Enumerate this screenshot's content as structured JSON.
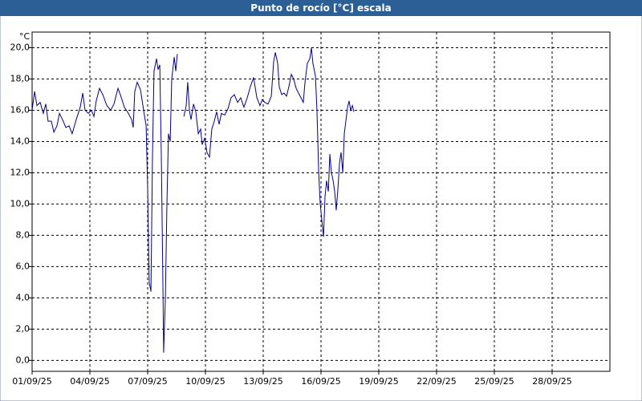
{
  "chart_data": {
    "type": "line",
    "title": "Punto de rocío [°C] escala",
    "y_unit": "°C",
    "x": [
      0,
      0.13,
      0.25,
      0.42,
      0.58,
      0.71,
      0.83,
      1.0,
      1.13,
      1.29,
      1.42,
      1.58,
      1.75,
      1.92,
      2.08,
      2.29,
      2.5,
      2.63,
      2.75,
      2.92,
      3.08,
      3.21,
      3.33,
      3.5,
      3.67,
      3.88,
      4.08,
      4.25,
      4.46,
      4.58,
      4.79,
      5.0,
      5.17,
      5.25,
      5.33,
      5.46,
      5.63,
      5.79,
      5.92,
      6.0,
      6.08,
      6.17,
      6.25,
      6.33,
      6.46,
      6.54,
      6.63,
      6.71,
      6.79,
      6.83,
      6.92,
      7.0,
      7.08,
      7.17,
      7.25,
      7.38,
      7.46,
      7.54,
      7.7,
      7.88,
      8.0,
      8.08,
      8.17,
      8.25,
      8.38,
      8.5,
      8.63,
      8.75,
      8.83,
      8.96,
      9.08,
      9.21,
      9.33,
      9.46,
      9.58,
      9.71,
      9.83,
      10.0,
      10.17,
      10.33,
      10.5,
      10.67,
      10.83,
      11.0,
      11.17,
      11.33,
      11.5,
      11.67,
      11.83,
      11.96,
      12.08,
      12.25,
      12.42,
      12.54,
      12.63,
      12.75,
      12.83,
      12.96,
      13.08,
      13.21,
      13.33,
      13.46,
      13.58,
      13.71,
      13.83,
      13.96,
      14.08,
      14.17,
      14.29,
      14.42,
      14.5,
      14.58,
      14.71,
      14.79,
      14.88,
      14.96,
      15.04,
      15.13,
      15.21,
      15.29,
      15.38,
      15.46,
      15.54,
      15.63,
      15.71,
      15.79,
      15.88,
      15.96,
      16.04,
      16.13,
      16.21,
      16.29,
      16.38,
      16.46,
      16.54,
      16.63,
      16.71
    ],
    "series": [
      {
        "color": "#00008b",
        "values": [
          16.0,
          17.2,
          16.3,
          16.5,
          15.8,
          16.4,
          15.3,
          15.3,
          14.6,
          15.0,
          15.8,
          15.4,
          14.9,
          15.0,
          14.5,
          15.4,
          16.2,
          17.1,
          16.0,
          15.8,
          16.0,
          15.6,
          16.6,
          17.4,
          17.0,
          16.3,
          16.0,
          16.4,
          17.4,
          17.0,
          16.2,
          15.8,
          15.4,
          14.9,
          17.2,
          17.8,
          17.3,
          16.0,
          15.0,
          11.0,
          5.0,
          4.4,
          13.0,
          18.5,
          19.3,
          18.6,
          18.9,
          13.0,
          5.0,
          0.5,
          4.0,
          10.0,
          14.5,
          14.0,
          18.0,
          19.4,
          18.5,
          19.6,
          null,
          15.6,
          16.3,
          17.8,
          16.0,
          15.4,
          16.4,
          15.9,
          14.5,
          14.8,
          13.8,
          14.2,
          13.3,
          13.0,
          14.8,
          15.3,
          15.9,
          15.1,
          15.8,
          15.7,
          16.1,
          16.8,
          17.0,
          16.5,
          16.8,
          16.2,
          16.8,
          17.5,
          18.1,
          16.8,
          16.3,
          16.7,
          16.5,
          16.4,
          16.9,
          19.1,
          19.7,
          19.0,
          17.5,
          17.0,
          17.1,
          16.9,
          17.5,
          18.3,
          18.0,
          17.4,
          17.1,
          16.8,
          16.5,
          17.8,
          19.0,
          19.3,
          20.0,
          19.0,
          18.2,
          16.0,
          12.0,
          10.0,
          9.0,
          7.9,
          10.5,
          11.5,
          10.8,
          13.2,
          12.0,
          11.5,
          10.8,
          9.6,
          11.0,
          12.6,
          13.3,
          12.0,
          14.5,
          15.3,
          16.2,
          16.6,
          16.0,
          16.3,
          15.9
        ]
      }
    ],
    "xlim": [
      0,
      30
    ],
    "ylim": [
      -0.7,
      21
    ],
    "xticks": [
      {
        "value": 0,
        "label": "01/09/25"
      },
      {
        "value": 3,
        "label": "04/09/25"
      },
      {
        "value": 6,
        "label": "07/09/25"
      },
      {
        "value": 9,
        "label": "10/09/25"
      },
      {
        "value": 12,
        "label": "13/09/25"
      },
      {
        "value": 15,
        "label": "16/09/25"
      },
      {
        "value": 18,
        "label": "19/09/25"
      },
      {
        "value": 21,
        "label": "22/09/25"
      },
      {
        "value": 24,
        "label": "25/09/25"
      },
      {
        "value": 27,
        "label": "28/09/25"
      }
    ],
    "yticks": [
      {
        "value": 0,
        "label": "0,0"
      },
      {
        "value": 2,
        "label": "2,0"
      },
      {
        "value": 4,
        "label": "4,0"
      },
      {
        "value": 6,
        "label": "6,0"
      },
      {
        "value": 8,
        "label": "8,0"
      },
      {
        "value": 10,
        "label": "10,0"
      },
      {
        "value": 12,
        "label": "12,0"
      },
      {
        "value": 14,
        "label": "14,0"
      },
      {
        "value": 16,
        "label": "16,0"
      },
      {
        "value": 18,
        "label": "18,0"
      },
      {
        "value": 20,
        "label": "20,0"
      }
    ],
    "grid": true
  }
}
